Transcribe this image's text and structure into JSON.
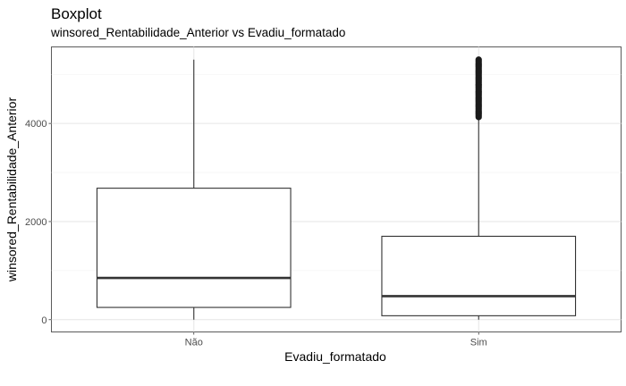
{
  "chart_data": {
    "type": "boxplot",
    "title": "Boxplot",
    "subtitle": "winsored_Rentabilidade_Anterior vs Evadiu_formatado",
    "xlabel": "Evadiu_formatado",
    "ylabel": "winsored_Rentabilidade_Anterior",
    "categories": [
      "Não",
      "Sim"
    ],
    "y_ticks": [
      0,
      2000,
      4000
    ],
    "ylim": [
      -250,
      5560
    ],
    "grid": true,
    "series": [
      {
        "category": "Não",
        "min": 0,
        "q1": 250,
        "median": 850,
        "q3": 2680,
        "max": 5300,
        "outliers_from": null,
        "outliers_to": null
      },
      {
        "category": "Sim",
        "min": 0,
        "q1": 80,
        "median": 480,
        "q3": 1700,
        "max": 4130,
        "outliers_from": 4130,
        "outliers_to": 5300
      }
    ]
  }
}
